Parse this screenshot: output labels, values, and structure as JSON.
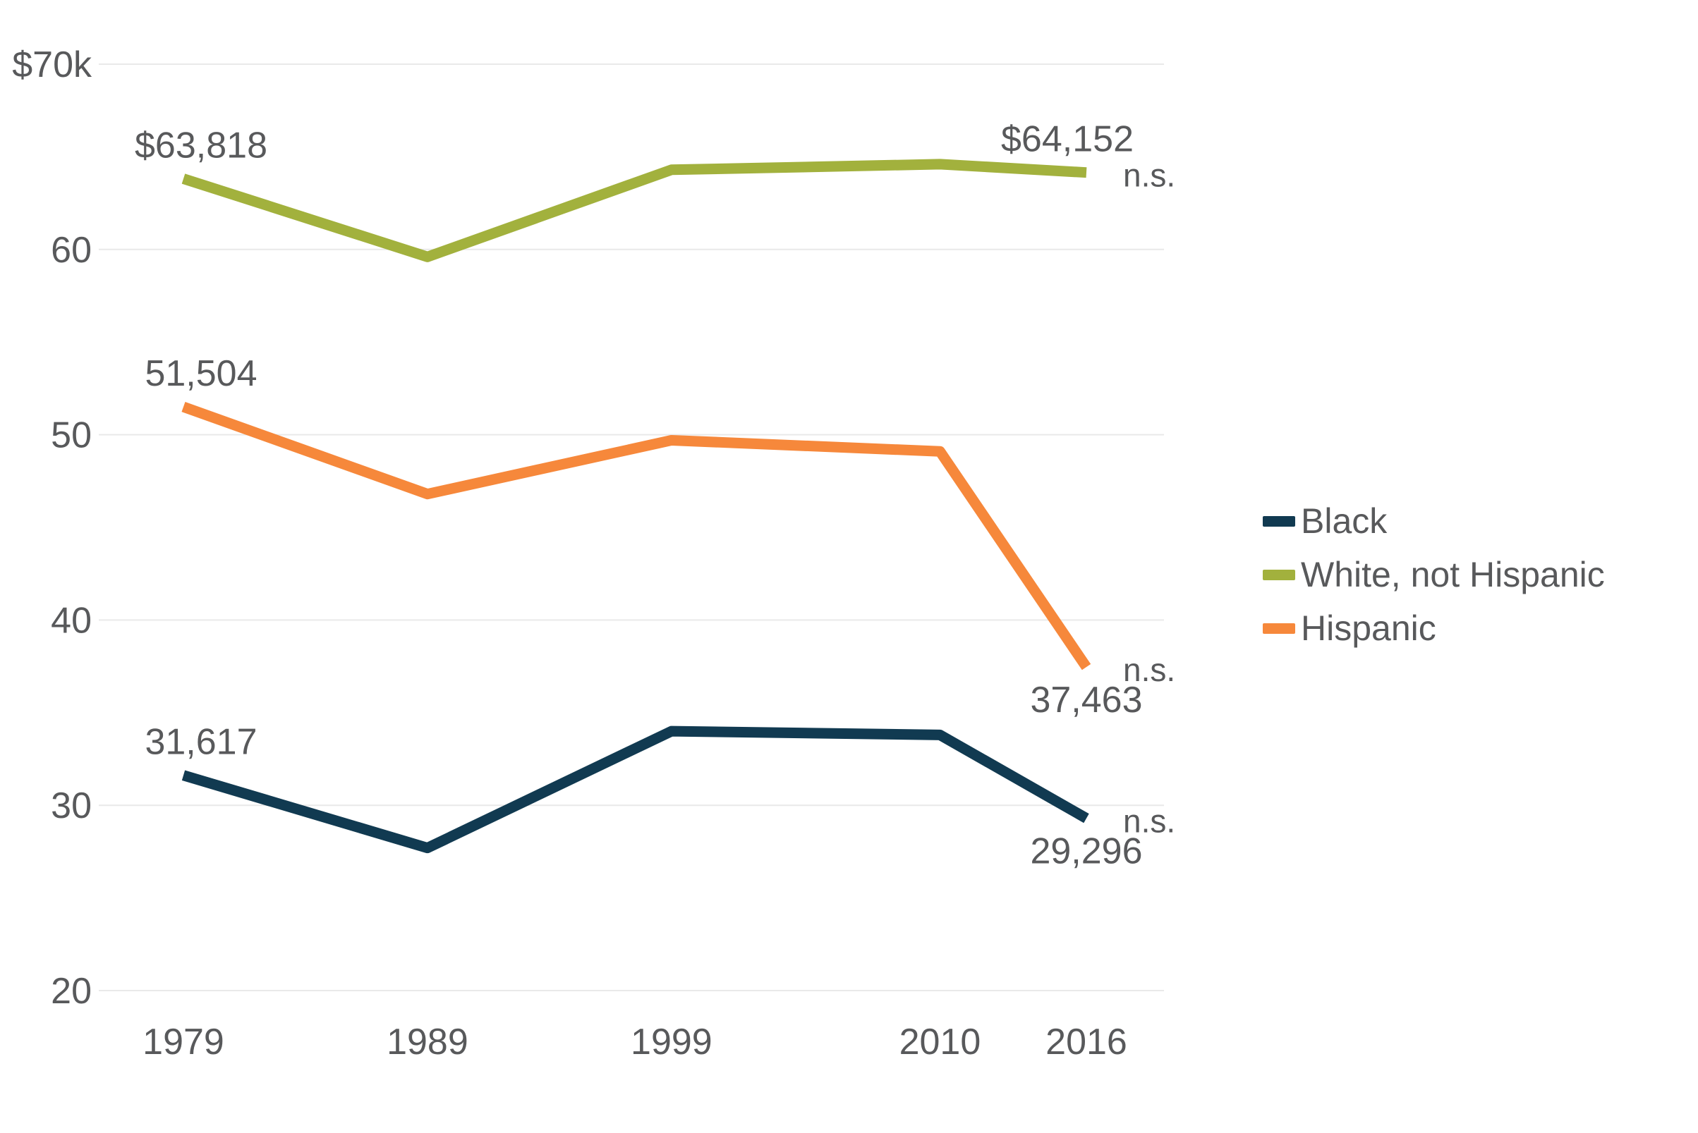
{
  "chart_data": {
    "type": "line",
    "x": [
      1979,
      1989,
      1999,
      2010,
      2016
    ],
    "x_tick_labels": [
      "1979",
      "1989",
      "1999",
      "2010",
      "2016"
    ],
    "xlabel": "",
    "ylabel": "",
    "ylim": [
      20000,
      70000
    ],
    "grid": "horizontal",
    "gridline_color": "#e9e9e9",
    "legend_position": "right",
    "y_ticks": [
      {
        "value": 70000,
        "label": "$70k"
      },
      {
        "value": 60000,
        "label": "60"
      },
      {
        "value": 50000,
        "label": "50"
      },
      {
        "value": 40000,
        "label": "40"
      },
      {
        "value": 30000,
        "label": "30"
      },
      {
        "value": 20000,
        "label": "20"
      }
    ],
    "series": [
      {
        "name": "White, not Hispanic",
        "color": "#a2b13d",
        "values": [
          63818,
          59600,
          64300,
          64600,
          64152
        ]
      },
      {
        "name": "Hispanic",
        "color": "#f6883b",
        "values": [
          51504,
          46800,
          49700,
          49100,
          37463
        ]
      },
      {
        "name": "Black",
        "color": "#113a51",
        "values": [
          31617,
          27700,
          34000,
          33800,
          29296
        ]
      }
    ],
    "annotations": [
      {
        "series": "White, not Hispanic",
        "x": 1979,
        "text": "$63,818",
        "position": "above"
      },
      {
        "series": "White, not Hispanic",
        "x": 2016,
        "text": "$64,152",
        "position": "above"
      },
      {
        "series": "White, not Hispanic",
        "x": 2016,
        "text": "n.s.",
        "position": "right"
      },
      {
        "series": "Hispanic",
        "x": 1979,
        "text": "51,504",
        "position": "above"
      },
      {
        "series": "Hispanic",
        "x": 2016,
        "text": "37,463",
        "position": "below"
      },
      {
        "series": "Hispanic",
        "x": 2016,
        "text": "n.s.",
        "position": "right"
      },
      {
        "series": "Black",
        "x": 1979,
        "text": "31,617",
        "position": "above"
      },
      {
        "series": "Black",
        "x": 2016,
        "text": "29,296",
        "position": "below"
      },
      {
        "series": "Black",
        "x": 2016,
        "text": "n.s.",
        "position": "right"
      }
    ]
  },
  "legend": {
    "items": [
      {
        "label": "Black",
        "color": "#113a51"
      },
      {
        "label": "White, not Hispanic",
        "color": "#a2b13d"
      },
      {
        "label": "Hispanic",
        "color": "#f6883b"
      }
    ]
  },
  "colors": {
    "text": "#58595b",
    "gridline": "#e9e9e9",
    "background": "#ffffff"
  }
}
